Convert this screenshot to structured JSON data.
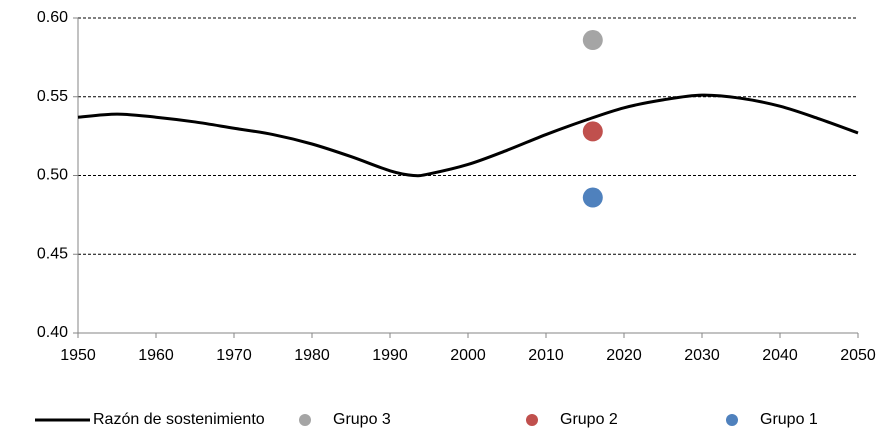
{
  "chart_data": {
    "type": "line",
    "xlim": [
      1950,
      2050
    ],
    "xticks": [
      1950,
      1960,
      1970,
      1980,
      1990,
      2000,
      2010,
      2020,
      2030,
      2040,
      2050
    ],
    "ylim": [
      0.4,
      0.6
    ],
    "yticks": [
      {
        "value": 0.4,
        "label": "0.40"
      },
      {
        "value": 0.45,
        "label": "0.45"
      },
      {
        "value": 0.5,
        "label": "0.50"
      },
      {
        "value": 0.55,
        "label": "0.55"
      },
      {
        "value": 0.6,
        "label": "0.60"
      }
    ],
    "grid": true,
    "legend": "bottom",
    "series": [
      {
        "name": "Razón de sostenimiento",
        "type": "line",
        "color": "#000000",
        "x": [
          1950,
          1955,
          1960,
          1965,
          1970,
          1975,
          1980,
          1985,
          1990,
          1993,
          1995,
          2000,
          2005,
          2010,
          2015,
          2020,
          2025,
          2030,
          2035,
          2040,
          2045,
          2050
        ],
        "values": [
          0.537,
          0.539,
          0.537,
          0.534,
          0.53,
          0.526,
          0.52,
          0.512,
          0.503,
          0.5,
          0.501,
          0.507,
          0.516,
          0.526,
          0.535,
          0.543,
          0.548,
          0.551,
          0.549,
          0.544,
          0.536,
          0.527
        ]
      },
      {
        "name": "Grupo 3",
        "type": "scatter",
        "color": "#a5a5a5",
        "x": [
          2016
        ],
        "values": [
          0.586
        ]
      },
      {
        "name": "Grupo 2",
        "type": "scatter",
        "color": "#c0504d",
        "x": [
          2016
        ],
        "values": [
          0.528
        ]
      },
      {
        "name": "Grupo 1",
        "type": "scatter",
        "color": "#4f81bd",
        "x": [
          2016
        ],
        "values": [
          0.486
        ]
      }
    ]
  }
}
